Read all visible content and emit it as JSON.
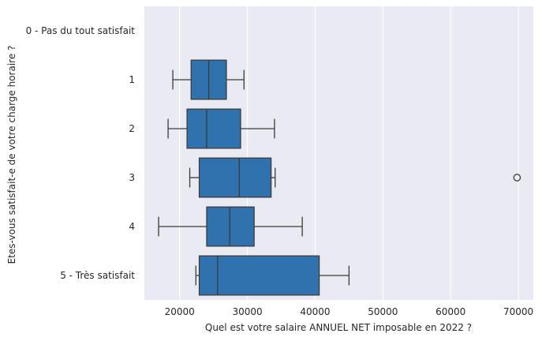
{
  "chart_data": {
    "type": "boxplot",
    "orientation": "horizontal",
    "xlabel": "Quel est votre salaire ANNUEL NET imposable en 2022 ?",
    "ylabel": "Etes-vous satisfait-e de votre charge horaire ?",
    "xlim": [
      14800,
      72200
    ],
    "xticks": [
      20000,
      30000,
      40000,
      50000,
      60000,
      70000
    ],
    "xtick_labels": [
      "20000",
      "30000",
      "40000",
      "50000",
      "60000",
      "70000"
    ],
    "grid": true,
    "categories": [
      "0 - Pas du tout satisfait",
      "1",
      "2",
      "3",
      "4",
      "5 - Très satisfait"
    ],
    "boxes": [
      null,
      {
        "whisker_low": 19000,
        "q1": 21700,
        "median": 24300,
        "q3": 26900,
        "whisker_high": 29500,
        "outliers": []
      },
      {
        "whisker_low": 18300,
        "q1": 21100,
        "median": 24000,
        "q3": 29000,
        "whisker_high": 34000,
        "outliers": []
      },
      {
        "whisker_low": 21500,
        "q1": 22900,
        "median": 28800,
        "q3": 33500,
        "whisker_high": 34100,
        "outliers": [
          69800
        ]
      },
      {
        "whisker_low": 16900,
        "q1": 24000,
        "median": 27400,
        "q3": 31000,
        "whisker_high": 38100,
        "outliers": []
      },
      {
        "whisker_low": 22400,
        "q1": 22900,
        "median": 25600,
        "q3": 40600,
        "whisker_high": 45000,
        "outliers": []
      }
    ],
    "colors": {
      "box_fill": "#2f72ad",
      "line": "#3b3b3b",
      "plot_bg": "#eaeaf2",
      "grid": "#ffffff",
      "text": "#262626"
    }
  }
}
